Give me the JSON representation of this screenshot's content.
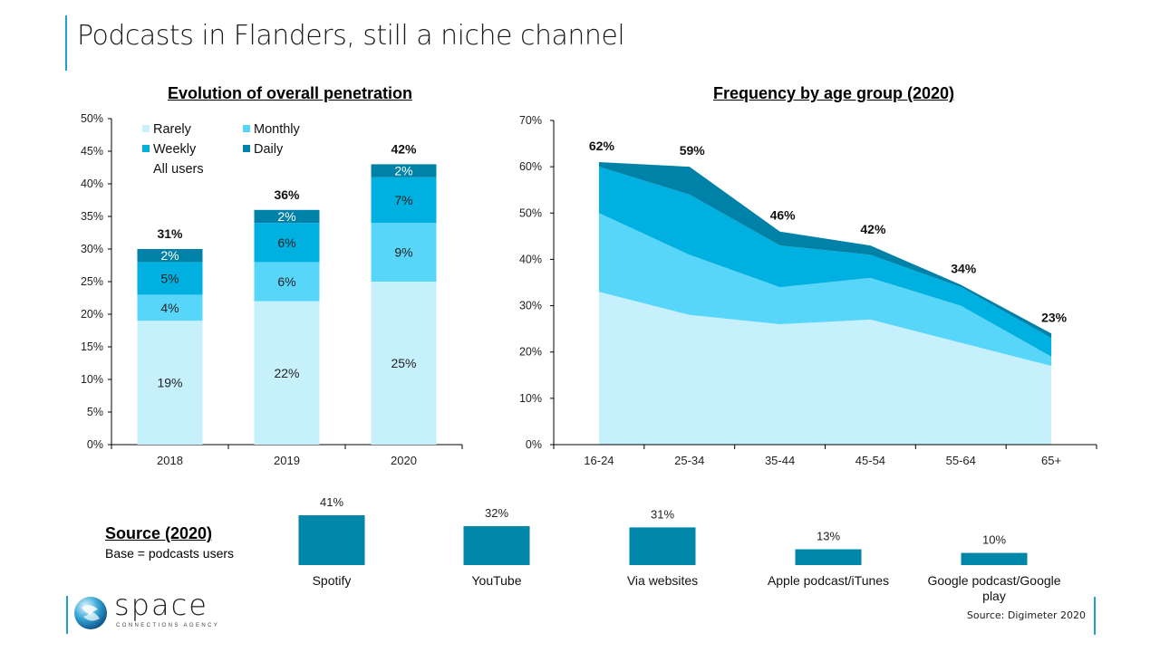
{
  "page": {
    "title": "Podcasts in Flanders, still a niche channel",
    "footer_source": "Source: Digimeter 2020",
    "logo": {
      "name": "space",
      "tagline": "CONNECTIONS AGENCY"
    }
  },
  "colors": {
    "rarely": "#c6f0fc",
    "monthly": "#58d6fa",
    "weekly": "#00b0e0",
    "daily": "#0082a8",
    "source_bar": "#0086a8",
    "accent": "#1fa3c4"
  },
  "source_section": {
    "title": "Source (2020)",
    "base": "Base = podcasts users"
  },
  "chart_data": [
    {
      "type": "bar",
      "stacked": true,
      "title": "Evolution of overall penetration",
      "categories": [
        "2018",
        "2019",
        "2020"
      ],
      "series": [
        {
          "name": "Rarely",
          "values": [
            19,
            22,
            25
          ]
        },
        {
          "name": "Monthly",
          "values": [
            4,
            6,
            9
          ]
        },
        {
          "name": "Weekly",
          "values": [
            5,
            6,
            7
          ]
        },
        {
          "name": "Daily",
          "values": [
            2,
            2,
            2
          ]
        }
      ],
      "totals_label": "All users",
      "totals": [
        31,
        36,
        42
      ],
      "ylim": [
        0,
        50
      ],
      "yticks": [
        "0%",
        "5%",
        "10%",
        "15%",
        "20%",
        "25%",
        "30%",
        "35%",
        "40%",
        "45%",
        "50%"
      ],
      "ytick_values": [
        0,
        5,
        10,
        15,
        20,
        25,
        30,
        35,
        40,
        45,
        50
      ],
      "xlabel": "",
      "ylabel": "",
      "legend": [
        "Rarely",
        "Monthly",
        "Weekly",
        "Daily",
        "All users"
      ],
      "legend_position": "top-left",
      "grid": false
    },
    {
      "type": "area",
      "stacked": true,
      "title": "Frequency by age group (2020)",
      "categories": [
        "16-24",
        "25-34",
        "35-44",
        "45-54",
        "55-64",
        "65+"
      ],
      "series": [
        {
          "name": "Rarely",
          "values": [
            33,
            28,
            26,
            27,
            22,
            17
          ]
        },
        {
          "name": "Monthly",
          "values": [
            17,
            13,
            8,
            9,
            8,
            2
          ]
        },
        {
          "name": "Weekly",
          "values": [
            10,
            13,
            9,
            5,
            4,
            4
          ]
        },
        {
          "name": "Daily",
          "values": [
            1,
            6,
            3,
            2,
            0.5,
            1
          ]
        }
      ],
      "totals": [
        62,
        59,
        46,
        42,
        34,
        23
      ],
      "ylim": [
        0,
        70
      ],
      "yticks": [
        "0%",
        "10%",
        "20%",
        "30%",
        "40%",
        "50%",
        "60%",
        "70%"
      ],
      "ytick_values": [
        0,
        10,
        20,
        30,
        40,
        50,
        60,
        70
      ],
      "xlabel": "",
      "ylabel": "",
      "grid": false
    },
    {
      "type": "bar",
      "title": "Source (2020)",
      "subtitle": "Base = podcasts users",
      "categories": [
        "Spotify",
        "YouTube",
        "Via websites",
        "Apple podcast/iTunes",
        "Google podcast/Google play"
      ],
      "values": [
        41,
        32,
        31,
        13,
        10
      ],
      "value_labels": [
        "41%",
        "32%",
        "31%",
        "13%",
        "10%"
      ],
      "axes_visible": false
    }
  ]
}
